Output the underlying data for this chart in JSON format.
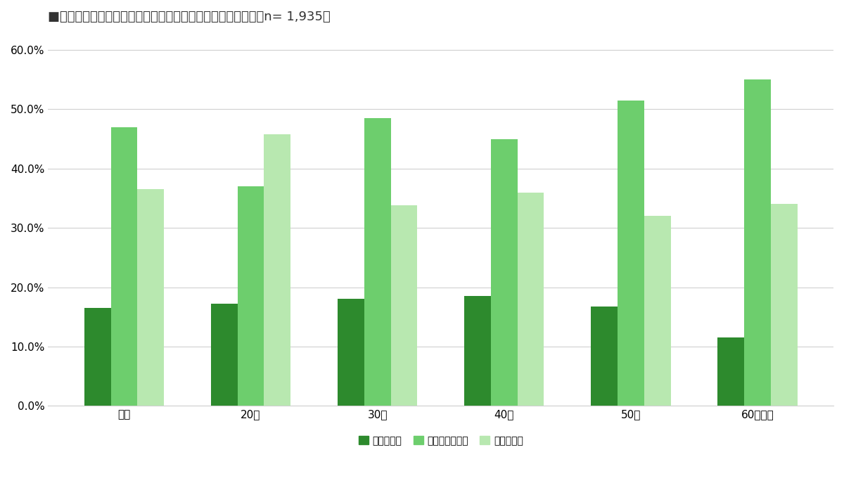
{
  "title": "■金融教育を受ける機会があったら受講してみたいですか？　n= 1,935人",
  "categories": [
    "全体",
    "20代",
    "30代",
    "40代",
    "50代",
    "60代以上"
  ],
  "series": [
    {
      "label": "受講したい",
      "color": "#2d8a2d",
      "values": [
        16.5,
        17.2,
        18.0,
        18.5,
        16.7,
        11.5
      ]
    },
    {
      "label": "受講したくない",
      "color": "#6dce6d",
      "values": [
        47.0,
        37.0,
        48.5,
        45.0,
        51.5,
        55.0
      ]
    },
    {
      "label": "わからない",
      "color": "#b8e8b0",
      "values": [
        36.5,
        45.8,
        33.8,
        36.0,
        32.0,
        34.0
      ]
    }
  ],
  "ylim": [
    0,
    63
  ],
  "yticks": [
    0.0,
    10.0,
    20.0,
    30.0,
    40.0,
    50.0,
    60.0
  ],
  "background_color": "#ffffff",
  "grid_color": "#d0d0d0",
  "title_fontsize": 13,
  "legend_fontsize": 10,
  "axis_fontsize": 11,
  "bar_width": 0.21
}
